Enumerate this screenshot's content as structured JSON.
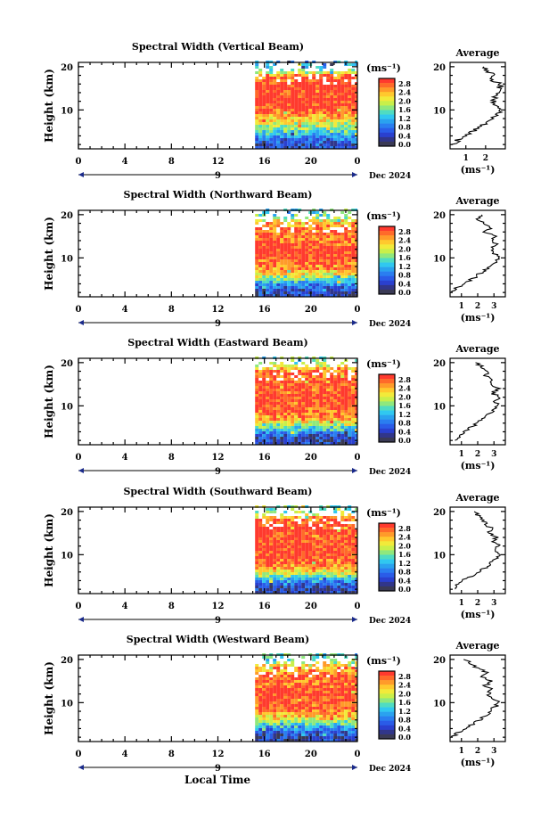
{
  "figure": {
    "xlabel": "Local Time",
    "date_label": "Dec 2024",
    "day_label": "9",
    "unit_label": "(ms⁻¹)",
    "average_title": "Average"
  },
  "colorbar": {
    "ticks": [
      "2.8",
      "2.4",
      "2.0",
      "1.6",
      "1.2",
      "0.8",
      "0.4",
      "0.0"
    ],
    "colors": [
      "#ff3a2e",
      "#ff6a2a",
      "#ff9b2a",
      "#ffc92e",
      "#f2ea3a",
      "#c9ef4a",
      "#8fe87d",
      "#4fdcc2",
      "#30c8f0",
      "#2aa2ef",
      "#2a7ef0",
      "#2a5ce8",
      "#2a40cf",
      "#31368a",
      "#3a3a55"
    ]
  },
  "chart_data": [
    {
      "type": "heatmap",
      "title": "Spectral Width (Vertical Beam)",
      "ylabel": "Height (km)",
      "x_ticks": [
        "0",
        "4",
        "8",
        "12",
        "16",
        "20",
        "0"
      ],
      "xlim": [
        0,
        24
      ],
      "ylim": [
        1,
        21
      ],
      "y_ticks": [
        "10",
        "20"
      ],
      "data_start_hour": 15.2,
      "band_profile": [
        [
          1,
          0.45
        ],
        [
          3,
          0.6
        ],
        [
          4,
          1.0
        ],
        [
          5,
          1.4
        ],
        [
          6,
          1.7
        ],
        [
          7,
          1.9
        ],
        [
          8,
          2.2
        ],
        [
          9,
          2.6
        ],
        [
          12,
          2.9
        ],
        [
          16,
          2.9
        ],
        [
          18,
          2.4
        ],
        [
          19,
          1.6
        ],
        [
          20,
          1.0
        ],
        [
          21,
          1.0
        ]
      ],
      "average": {
        "x_ticks": [
          "1",
          "2"
        ],
        "xlim": [
          0.2,
          3.0
        ],
        "profile": [
          [
            2,
            0.4
          ],
          [
            3,
            0.6
          ],
          [
            4,
            0.9
          ],
          [
            6,
            1.7
          ],
          [
            8,
            2.3
          ],
          [
            10,
            2.8
          ],
          [
            11,
            2.6
          ],
          [
            12,
            2.4
          ],
          [
            14,
            2.6
          ],
          [
            16,
            2.8
          ],
          [
            17,
            2.3
          ],
          [
            18,
            2.5
          ],
          [
            19,
            2.1
          ],
          [
            20,
            1.8
          ]
        ]
      }
    },
    {
      "type": "heatmap",
      "title": "Spectral Width (Northward Beam)",
      "ylabel": "Height (km)",
      "x_ticks": [
        "0",
        "4",
        "8",
        "12",
        "16",
        "20",
        "0"
      ],
      "xlim": [
        0,
        24
      ],
      "ylim": [
        1,
        21
      ],
      "y_ticks": [
        "10",
        "20"
      ],
      "data_start_hour": 15.2,
      "band_profile": [
        [
          1,
          0.3
        ],
        [
          3,
          0.5
        ],
        [
          4,
          0.9
        ],
        [
          5,
          1.4
        ],
        [
          6,
          1.9
        ],
        [
          7,
          2.3
        ],
        [
          9,
          2.7
        ],
        [
          12,
          2.9
        ],
        [
          14,
          2.5
        ],
        [
          16,
          2.7
        ],
        [
          18,
          2.3
        ],
        [
          19,
          1.8
        ],
        [
          20,
          1.3
        ],
        [
          21,
          1.3
        ]
      ],
      "average": {
        "x_ticks": [
          "1",
          "2",
          "3"
        ],
        "xlim": [
          0.3,
          3.7
        ],
        "profile": [
          [
            2,
            0.5
          ],
          [
            3,
            0.7
          ],
          [
            4,
            1.2
          ],
          [
            6,
            2.0
          ],
          [
            8,
            2.8
          ],
          [
            10,
            3.3
          ],
          [
            11,
            3.0
          ],
          [
            12,
            2.8
          ],
          [
            13,
            3.2
          ],
          [
            14,
            2.8
          ],
          [
            15,
            3.0
          ],
          [
            16,
            2.5
          ],
          [
            17,
            2.9
          ],
          [
            18,
            2.3
          ],
          [
            19,
            2.0
          ],
          [
            20,
            2.2
          ]
        ]
      }
    },
    {
      "type": "heatmap",
      "title": "Spectral Width (Eastward Beam)",
      "ylabel": "Height (km)",
      "x_ticks": [
        "0",
        "4",
        "8",
        "12",
        "16",
        "20",
        "0"
      ],
      "xlim": [
        0,
        24
      ],
      "ylim": [
        1,
        21
      ],
      "y_ticks": [
        "10",
        "20"
      ],
      "data_start_hour": 15.2,
      "band_profile": [
        [
          1,
          0.3
        ],
        [
          3,
          0.5
        ],
        [
          4,
          1.0
        ],
        [
          5,
          1.4
        ],
        [
          6,
          1.9
        ],
        [
          7,
          2.4
        ],
        [
          9,
          2.7
        ],
        [
          12,
          2.9
        ],
        [
          14,
          2.6
        ],
        [
          16,
          2.8
        ],
        [
          18,
          2.5
        ],
        [
          19,
          2.0
        ],
        [
          20,
          1.5
        ],
        [
          21,
          1.5
        ]
      ],
      "average": {
        "x_ticks": [
          "1",
          "2",
          "3"
        ],
        "xlim": [
          0.3,
          3.7
        ],
        "profile": [
          [
            2,
            0.6
          ],
          [
            3,
            0.8
          ],
          [
            4,
            1.2
          ],
          [
            6,
            2.0
          ],
          [
            8,
            2.7
          ],
          [
            10,
            3.3
          ],
          [
            11,
            3.0
          ],
          [
            12,
            3.3
          ],
          [
            13,
            2.9
          ],
          [
            14,
            3.3
          ],
          [
            15,
            2.8
          ],
          [
            16,
            3.0
          ],
          [
            17,
            2.5
          ],
          [
            18,
            2.7
          ],
          [
            19,
            2.2
          ],
          [
            20,
            2.0
          ]
        ]
      }
    },
    {
      "type": "heatmap",
      "title": "Spectral Width (Southward Beam)",
      "ylabel": "Height (km)",
      "x_ticks": [
        "0",
        "4",
        "8",
        "12",
        "16",
        "20",
        "0"
      ],
      "xlim": [
        0,
        24
      ],
      "ylim": [
        1,
        21
      ],
      "y_ticks": [
        "10",
        "20"
      ],
      "data_start_hour": 15.2,
      "band_profile": [
        [
          1,
          0.3
        ],
        [
          3,
          0.5
        ],
        [
          4,
          1.0
        ],
        [
          5,
          1.5
        ],
        [
          6,
          2.0
        ],
        [
          7,
          2.4
        ],
        [
          9,
          2.7
        ],
        [
          12,
          2.9
        ],
        [
          14,
          2.7
        ],
        [
          16,
          2.9
        ],
        [
          18,
          2.6
        ],
        [
          19,
          2.1
        ],
        [
          20,
          1.6
        ],
        [
          21,
          1.6
        ]
      ],
      "average": {
        "x_ticks": [
          "1",
          "2",
          "3"
        ],
        "xlim": [
          0.3,
          3.7
        ],
        "profile": [
          [
            2,
            0.5
          ],
          [
            3,
            0.8
          ],
          [
            4,
            1.1
          ],
          [
            6,
            2.1
          ],
          [
            8,
            2.8
          ],
          [
            10,
            3.3
          ],
          [
            11,
            3.0
          ],
          [
            12,
            3.3
          ],
          [
            13,
            2.9
          ],
          [
            14,
            3.2
          ],
          [
            15,
            2.7
          ],
          [
            16,
            2.9
          ],
          [
            17,
            2.5
          ],
          [
            18,
            2.4
          ],
          [
            19,
            2.0
          ],
          [
            20,
            1.8
          ]
        ]
      }
    },
    {
      "type": "heatmap",
      "title": "Spectral Width (Westward Beam)",
      "ylabel": "Height (km)",
      "x_ticks": [
        "0",
        "4",
        "8",
        "12",
        "16",
        "20",
        "0"
      ],
      "xlim": [
        0,
        24
      ],
      "ylim": [
        1,
        21
      ],
      "y_ticks": [
        "10",
        "20"
      ],
      "data_start_hour": 15.2,
      "band_profile": [
        [
          1,
          0.3
        ],
        [
          3,
          0.5
        ],
        [
          4,
          0.9
        ],
        [
          5,
          1.4
        ],
        [
          6,
          1.9
        ],
        [
          7,
          2.3
        ],
        [
          9,
          2.7
        ],
        [
          12,
          2.9
        ],
        [
          14,
          2.6
        ],
        [
          16,
          2.7
        ],
        [
          18,
          2.3
        ],
        [
          19,
          1.8
        ],
        [
          20,
          1.4
        ],
        [
          21,
          1.4
        ]
      ],
      "average": {
        "x_ticks": [
          "1",
          "2",
          "3"
        ],
        "xlim": [
          0.3,
          3.7
        ],
        "profile": [
          [
            2,
            0.5
          ],
          [
            3,
            0.8
          ],
          [
            4,
            1.2
          ],
          [
            6,
            2.1
          ],
          [
            8,
            2.8
          ],
          [
            10,
            3.3
          ],
          [
            11,
            2.9
          ],
          [
            12,
            2.6
          ],
          [
            13,
            2.9
          ],
          [
            14,
            2.5
          ],
          [
            15,
            2.8
          ],
          [
            16,
            2.3
          ],
          [
            17,
            2.5
          ],
          [
            18,
            2.0
          ],
          [
            19,
            1.6
          ],
          [
            20,
            1.3
          ]
        ]
      }
    }
  ]
}
